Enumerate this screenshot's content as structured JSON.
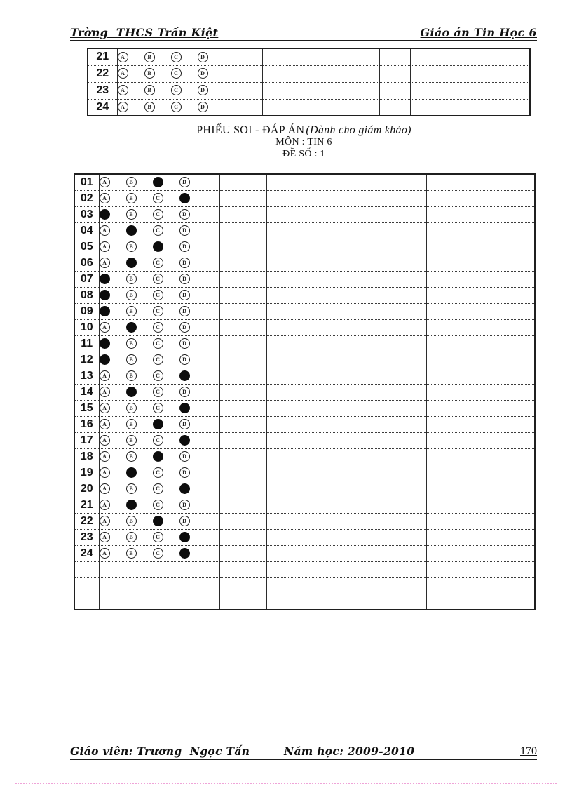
{
  "header": {
    "left": "Trờng  THCS Trần Kiệt",
    "right": "Giáo án Tin Học 6"
  },
  "title": {
    "main": "PHIẾU SOI - ĐÁP ÁN",
    "note": "(Dành cho giám khảo)",
    "subject": "MÔN : TIN 6",
    "exam_code": "ĐỀ SỐ : 1"
  },
  "options": [
    "A",
    "B",
    "C",
    "D"
  ],
  "top_table": {
    "rows": [
      {
        "number": "21",
        "answer": null
      },
      {
        "number": "22",
        "answer": null
      },
      {
        "number": "23",
        "answer": null
      },
      {
        "number": "24",
        "answer": null
      }
    ],
    "empty_rows": 0
  },
  "answer_table": {
    "rows": [
      {
        "number": "01",
        "answer": "C"
      },
      {
        "number": "02",
        "answer": "D"
      },
      {
        "number": "03",
        "answer": "A"
      },
      {
        "number": "04",
        "answer": "B"
      },
      {
        "number": "05",
        "answer": "C"
      },
      {
        "number": "06",
        "answer": "B"
      },
      {
        "number": "07",
        "answer": "A"
      },
      {
        "number": "08",
        "answer": "A"
      },
      {
        "number": "09",
        "answer": "A"
      },
      {
        "number": "10",
        "answer": "B"
      },
      {
        "number": "11",
        "answer": "A"
      },
      {
        "number": "12",
        "answer": "A"
      },
      {
        "number": "13",
        "answer": "D"
      },
      {
        "number": "14",
        "answer": "B"
      },
      {
        "number": "15",
        "answer": "D"
      },
      {
        "number": "16",
        "answer": "C"
      },
      {
        "number": "17",
        "answer": "D"
      },
      {
        "number": "18",
        "answer": "C"
      },
      {
        "number": "19",
        "answer": "B"
      },
      {
        "number": "20",
        "answer": "D"
      },
      {
        "number": "21",
        "answer": "B"
      },
      {
        "number": "22",
        "answer": "C"
      },
      {
        "number": "23",
        "answer": "D"
      },
      {
        "number": "24",
        "answer": "D"
      }
    ],
    "empty_rows": 3
  },
  "footer": {
    "teacher": "Giáo viên: Trương  Ngọc Tấn",
    "year": "Năm học: 2009-2010",
    "page_number": "170"
  }
}
